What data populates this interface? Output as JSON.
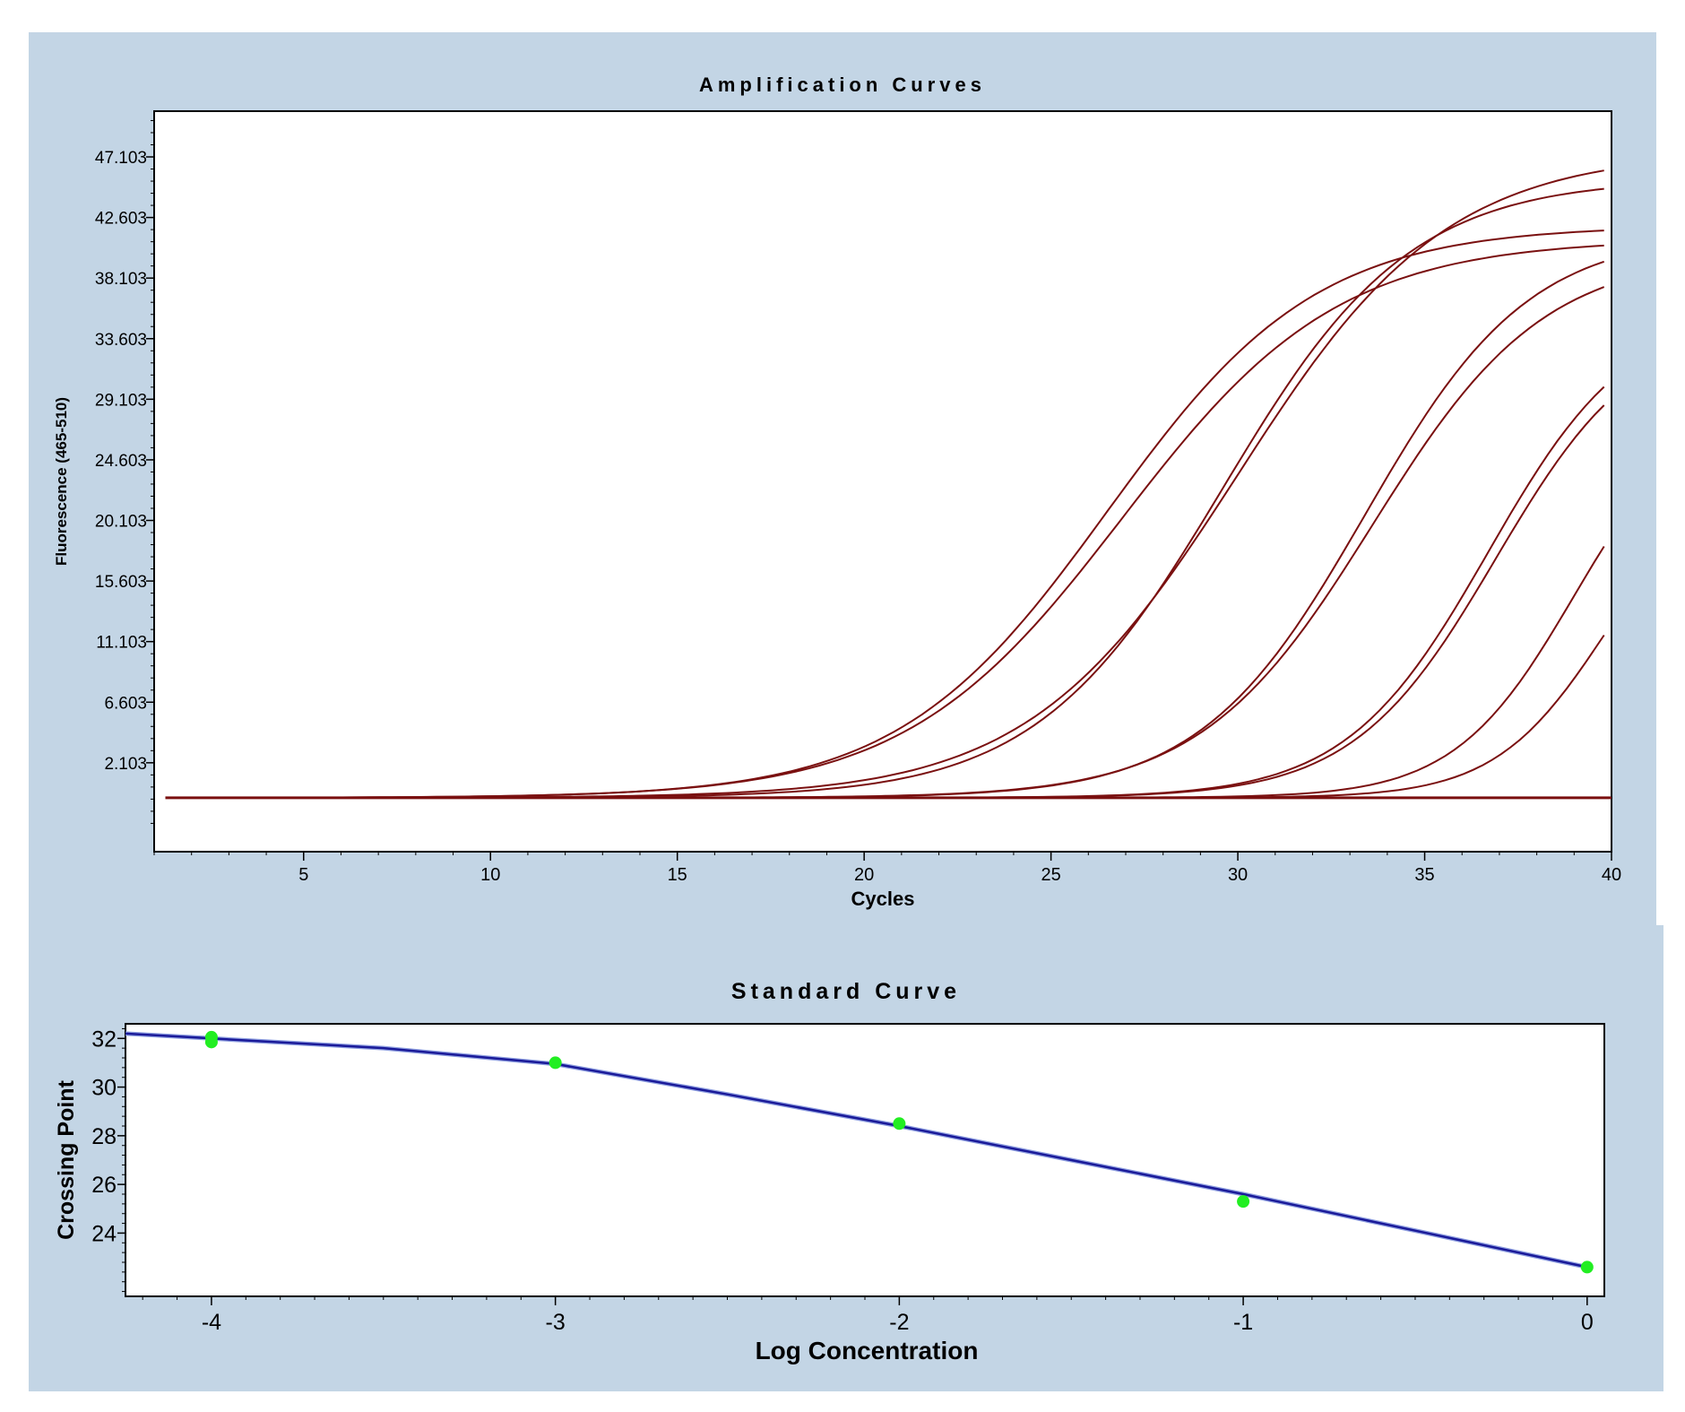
{
  "chart_data": [
    {
      "type": "line",
      "title": "Amplification Curves",
      "xlabel": "Cycles",
      "ylabel": "Fluorescence (465-510)",
      "xlim": [
        1,
        40
      ],
      "ylim": [
        -4.5,
        50.5
      ],
      "x_ticks": [
        5,
        10,
        15,
        20,
        25,
        30,
        35,
        40
      ],
      "y_ticks": [
        2.103,
        6.603,
        11.103,
        15.603,
        20.103,
        24.603,
        29.103,
        33.603,
        38.103,
        42.603,
        47.103
      ],
      "y_tick_labels": [
        "2.103",
        "6.603",
        "11.103",
        "15.603",
        "20.103",
        "24.603",
        "29.103",
        "33.603",
        "38.103",
        "42.603",
        "47.103"
      ],
      "grid": false,
      "line_color": "#7a1010",
      "baseline": -0.5,
      "series_params": [
        {
          "plateau": 42.5,
          "midpoint": 26.5,
          "slope": 2.8
        },
        {
          "plateau": 41.5,
          "midpoint": 26.9,
          "slope": 2.9
        },
        {
          "plateau": 46.0,
          "midpoint": 29.6,
          "slope": 2.5
        },
        {
          "plateau": 48.0,
          "midpoint": 30.0,
          "slope": 2.8
        },
        {
          "plateau": 42.0,
          "midpoint": 33.4,
          "slope": 2.2
        },
        {
          "plateau": 40.5,
          "midpoint": 33.6,
          "slope": 2.3
        },
        {
          "plateau": 36.5,
          "midpoint": 36.7,
          "slope": 1.9
        },
        {
          "plateau": 35.5,
          "midpoint": 36.9,
          "slope": 1.9
        },
        {
          "plateau": 30.0,
          "midpoint": 39.0,
          "slope": 1.6
        },
        {
          "plateau": 25.0,
          "midpoint": 39.9,
          "slope": 1.5
        }
      ]
    },
    {
      "type": "scatter",
      "title": "Standard Curve",
      "xlabel": "Log Concentration",
      "ylabel": "Crossing Point",
      "xlim": [
        -4.25,
        0.05
      ],
      "ylim": [
        21.4,
        32.6
      ],
      "x_ticks": [
        -4,
        -3,
        -2,
        -1,
        0
      ],
      "y_ticks": [
        24,
        26,
        28,
        30,
        32
      ],
      "grid": false,
      "points": [
        {
          "x": -4,
          "y": 32.05
        },
        {
          "x": -4,
          "y": 31.85
        },
        {
          "x": -3,
          "y": 31.0
        },
        {
          "x": -2,
          "y": 28.5
        },
        {
          "x": -1,
          "y": 25.3
        },
        {
          "x": 0,
          "y": 22.6
        }
      ],
      "point_color": "#22ee22",
      "fit_line": {
        "x": [
          -4.25,
          -4.0,
          -3.5,
          -3.0,
          -2.5,
          -2.0,
          -1.5,
          -1.0,
          -0.5,
          0.0
        ],
        "y": [
          32.2,
          32.0,
          31.6,
          30.95,
          29.7,
          28.4,
          27.0,
          25.6,
          24.1,
          22.6
        ]
      },
      "line_color": "#1a1a99"
    }
  ]
}
